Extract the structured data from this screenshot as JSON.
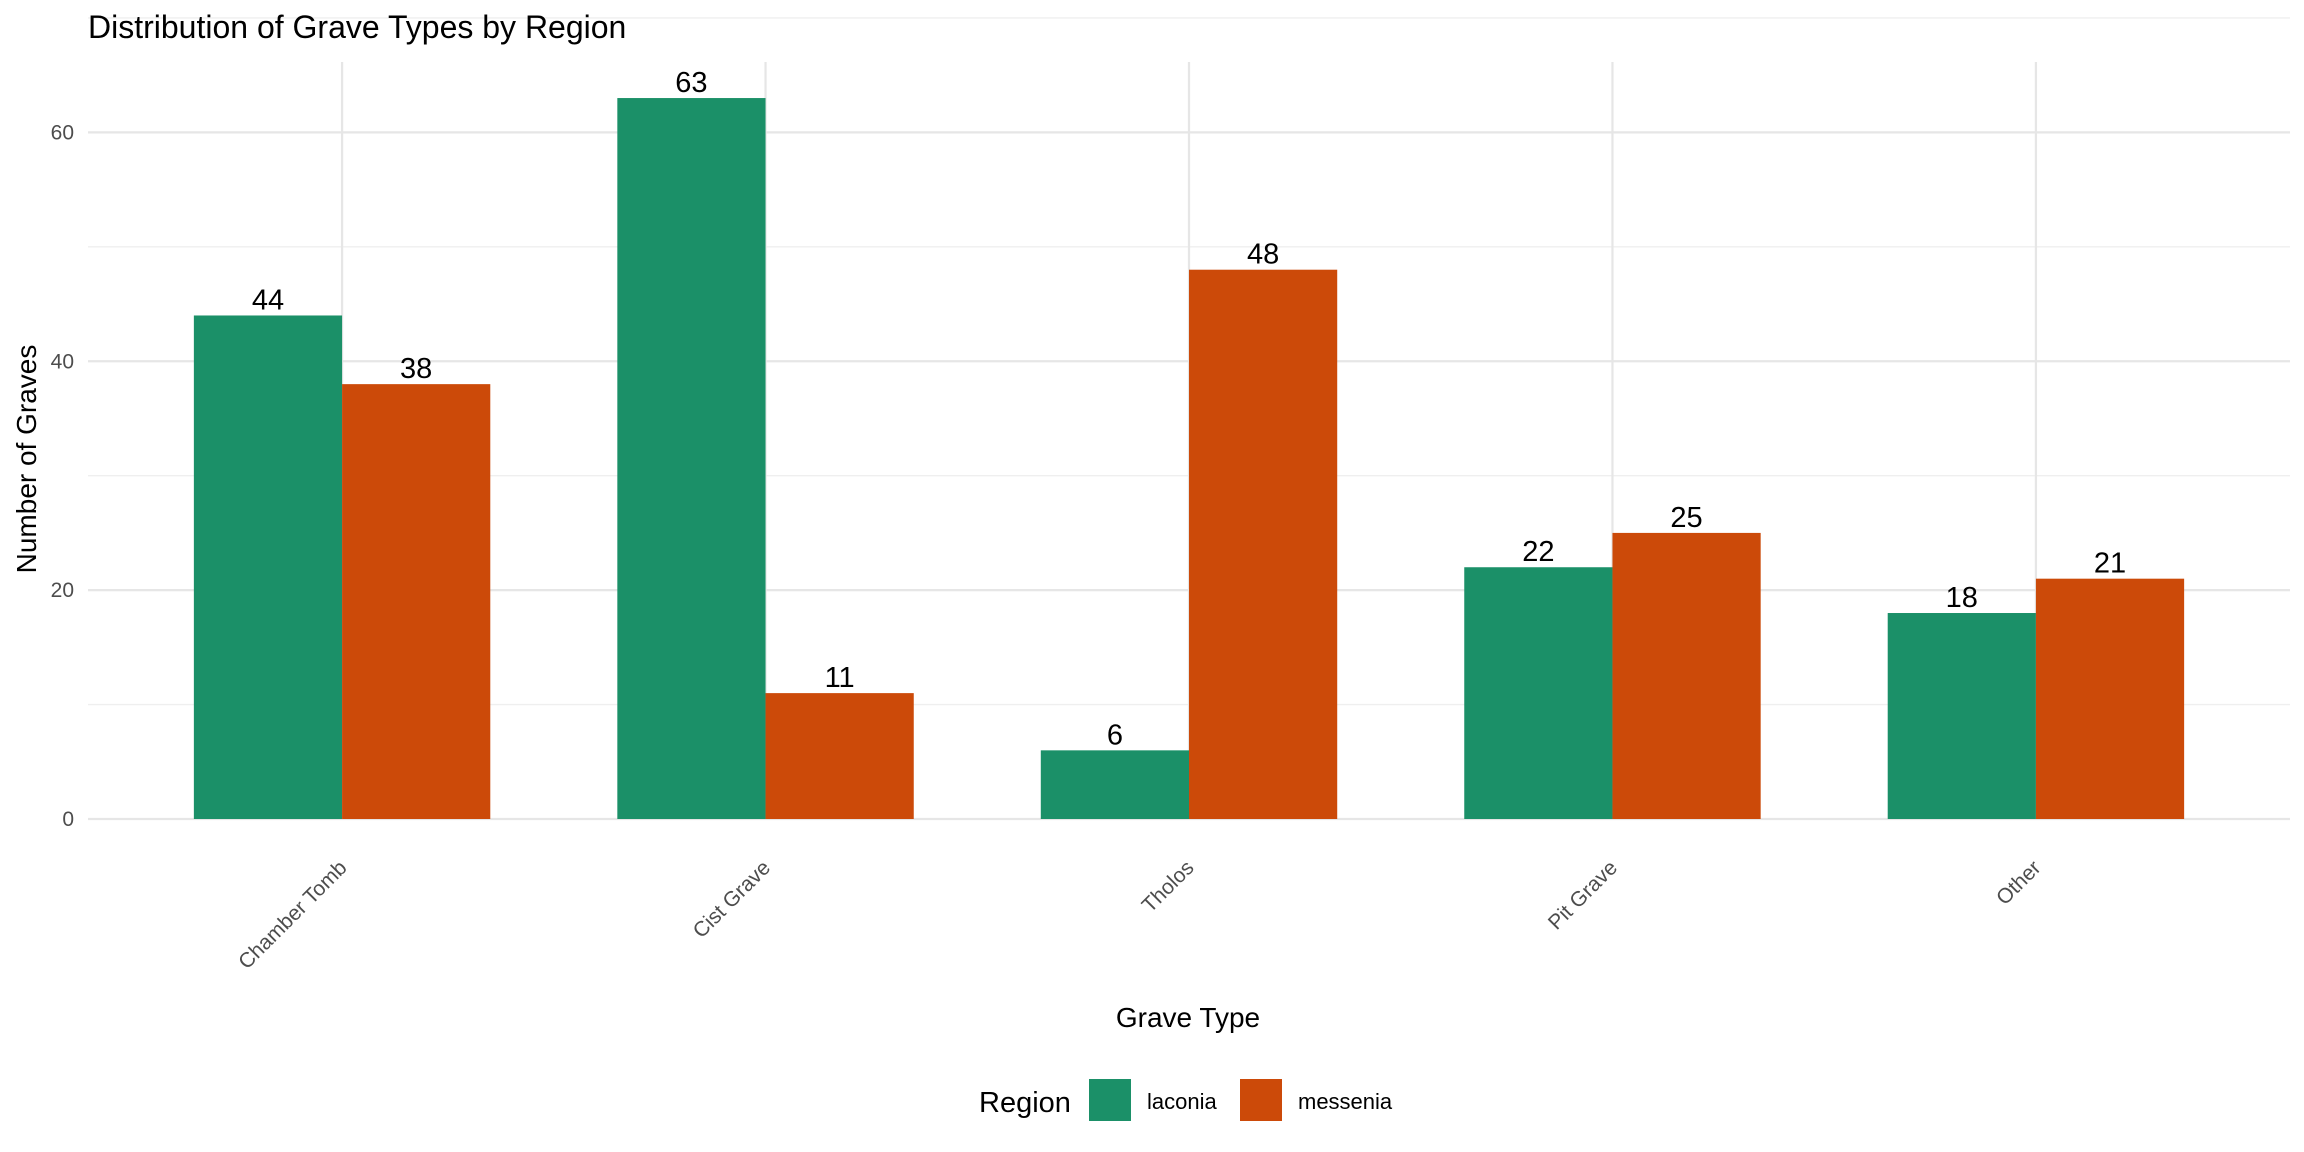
{
  "chart_data": {
    "type": "bar",
    "title": "Distribution of Grave Types by Region",
    "xlabel": "Grave Type",
    "ylabel": "Number of Graves",
    "categories": [
      "Chamber Tomb",
      "Cist Grave",
      "Tholos",
      "Pit Grave",
      "Other"
    ],
    "series": [
      {
        "name": "laconia",
        "color": "#1b9068",
        "values": [
          44,
          63,
          6,
          22,
          18
        ]
      },
      {
        "name": "messenia",
        "color": "#cc4a09",
        "values": [
          38,
          11,
          48,
          25,
          21
        ]
      }
    ],
    "ylim": [
      0,
      63
    ],
    "yticks": [
      0,
      20,
      40,
      60
    ],
    "grid": true,
    "legend": {
      "title": "Region",
      "position": "bottom"
    }
  }
}
